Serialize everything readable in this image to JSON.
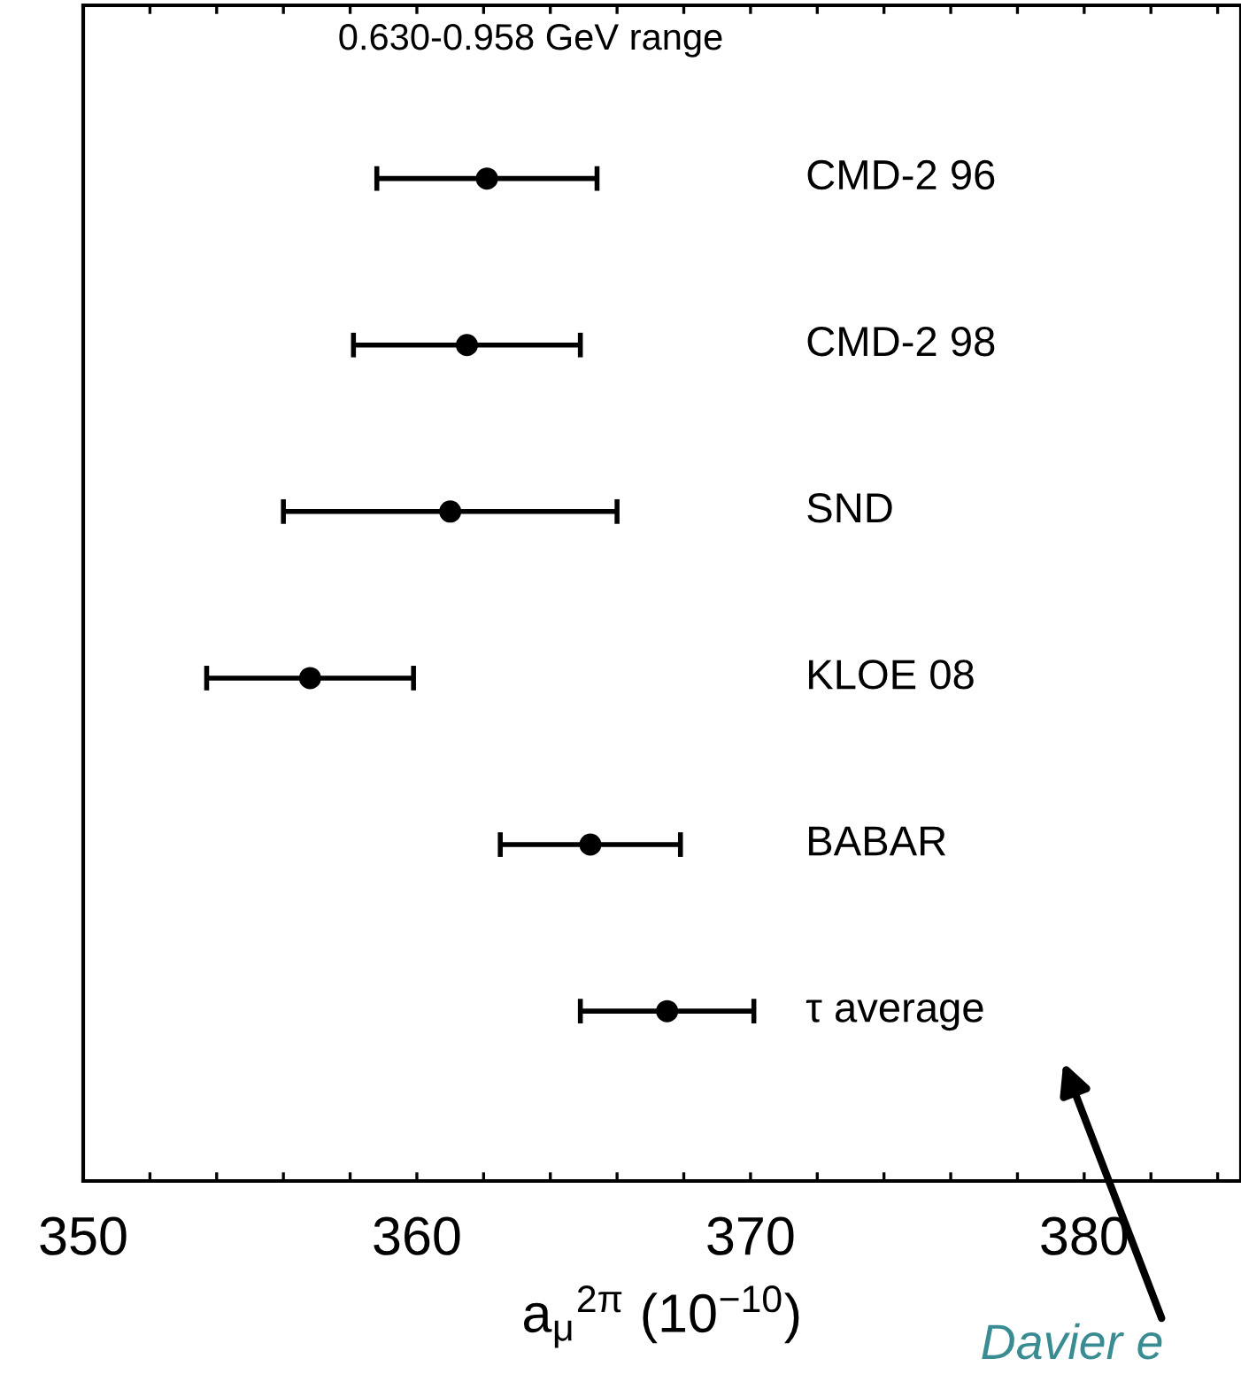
{
  "chart_data": {
    "type": "scatter",
    "orientation": "horizontal",
    "categories": [
      "CMD-2 96",
      "CMD-2 98",
      "SND",
      "KLOE 08",
      "BABAR",
      "τ average"
    ],
    "values": [
      362.1,
      361.5,
      361.0,
      356.8,
      365.2,
      367.5
    ],
    "errors": [
      3.3,
      3.4,
      5.0,
      3.1,
      2.7,
      2.6
    ],
    "color": "#000000",
    "marker": "circle",
    "xlabel": "a$_{μ}$$^{2π}$ (10$^{−10}$)",
    "xlim": [
      350,
      384.7
    ],
    "xticks": [
      350,
      {
        "value": 352,
        "label": null
      },
      {
        "value": 354,
        "label": null
      },
      {
        "value": 356,
        "label": null
      },
      {
        "value": 358,
        "label": null
      },
      360,
      {
        "value": 362,
        "label": null
      },
      {
        "value": 364,
        "label": null
      },
      {
        "value": 366,
        "label": null
      },
      {
        "value": 368,
        "label": null
      },
      370,
      {
        "value": 372,
        "label": null
      },
      {
        "value": 374,
        "label": null
      },
      {
        "value": 376,
        "label": null
      },
      {
        "value": 378,
        "label": null
      },
      380,
      {
        "value": 382,
        "label": null
      },
      {
        "value": 384,
        "label": null
      }
    ],
    "tick_labels": "x",
    "grid": false,
    "legend": false,
    "annotations": [
      "0.630-0.958 GeV range",
      "Davier e"
    ]
  }
}
